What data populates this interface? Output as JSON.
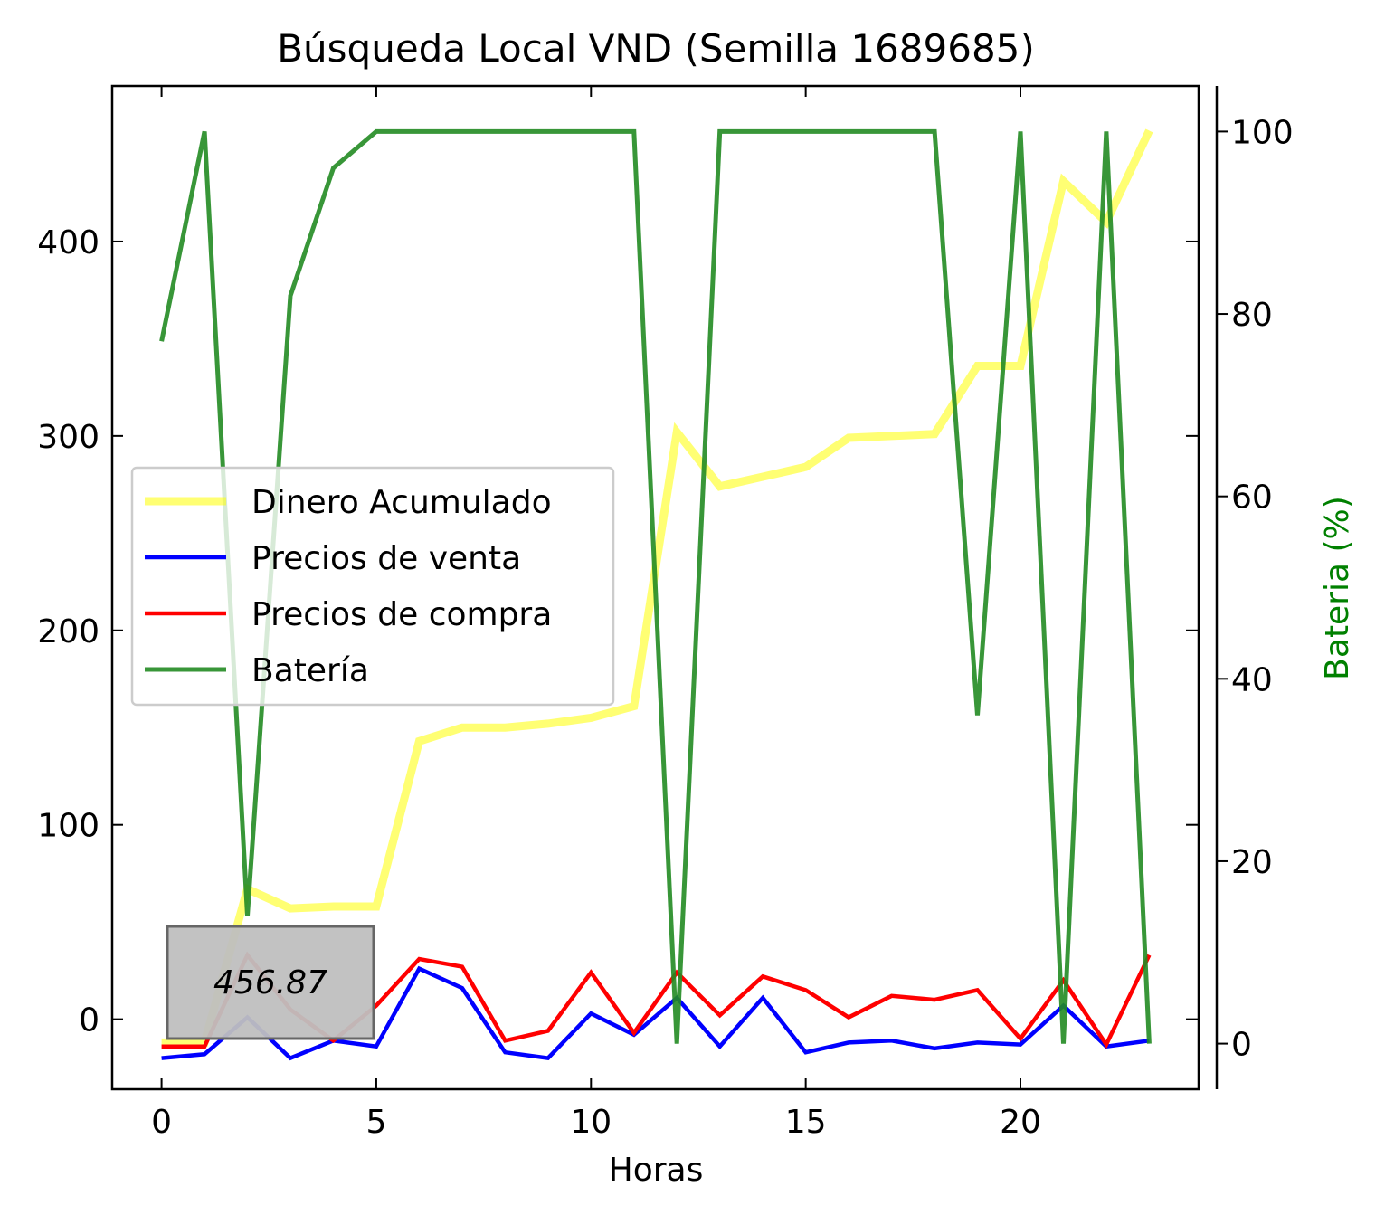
{
  "chart_data": {
    "type": "line",
    "title": "Búsqueda Local VND (Semilla 1689685)",
    "xlabel": "Horas",
    "ylabel": "",
    "y2label": "Bateria (%)",
    "xlim": [
      -1.15,
      24.15
    ],
    "ylim": [
      -36,
      480
    ],
    "y2lim": [
      -5,
      105
    ],
    "xticks": [
      0,
      5,
      10,
      15,
      20
    ],
    "yticks": [
      0,
      100,
      200,
      300,
      400
    ],
    "y2ticks": [
      0,
      20,
      40,
      60,
      80,
      100
    ],
    "x": [
      0,
      1,
      2,
      3,
      4,
      5,
      6,
      7,
      8,
      9,
      10,
      11,
      12,
      13,
      14,
      15,
      16,
      17,
      18,
      19,
      20,
      21,
      22,
      23
    ],
    "series": [
      {
        "name": "Dinero Acumulado",
        "axis": "left",
        "color": "#ffff00",
        "opacity": 0.55,
        "width": 9,
        "values": [
          -12,
          -12,
          67,
          57,
          58,
          58,
          143,
          150,
          150,
          152,
          155,
          161,
          302,
          274,
          279,
          284,
          299,
          300,
          301,
          336,
          336,
          431,
          410,
          457
        ]
      },
      {
        "name": "Precios de venta",
        "axis": "left",
        "color": "#0000ff",
        "opacity": 1,
        "width": 4.5,
        "values": [
          -20,
          -18,
          1,
          -20,
          -11,
          -14,
          26,
          16,
          -17,
          -20,
          3,
          -8,
          11,
          -14,
          11,
          -17,
          -12,
          -11,
          -15,
          -12,
          -13,
          7,
          -14,
          -11
        ]
      },
      {
        "name": "Precios de compra",
        "axis": "left",
        "color": "#ff0000",
        "opacity": 1,
        "width": 4.5,
        "values": [
          -14,
          -14,
          33,
          5,
          -11,
          7,
          31,
          27,
          -11,
          -6,
          24,
          -7,
          24,
          2,
          22,
          15,
          1,
          12,
          10,
          15,
          -10,
          20,
          -13,
          33
        ]
      },
      {
        "name": "Batería",
        "axis": "right",
        "color": "#228b22",
        "opacity": 0.9,
        "width": 5,
        "values": [
          77,
          100,
          14,
          82,
          96,
          100,
          100,
          100,
          100,
          100,
          100,
          100,
          0,
          100,
          100,
          100,
          100,
          100,
          100,
          36,
          100,
          0,
          100,
          0
        ]
      }
    ],
    "legend_position": "center-left",
    "annotation": {
      "text": "456.87",
      "position": "bottom-left",
      "box_color": "#bfbfbf"
    },
    "grid": false
  }
}
